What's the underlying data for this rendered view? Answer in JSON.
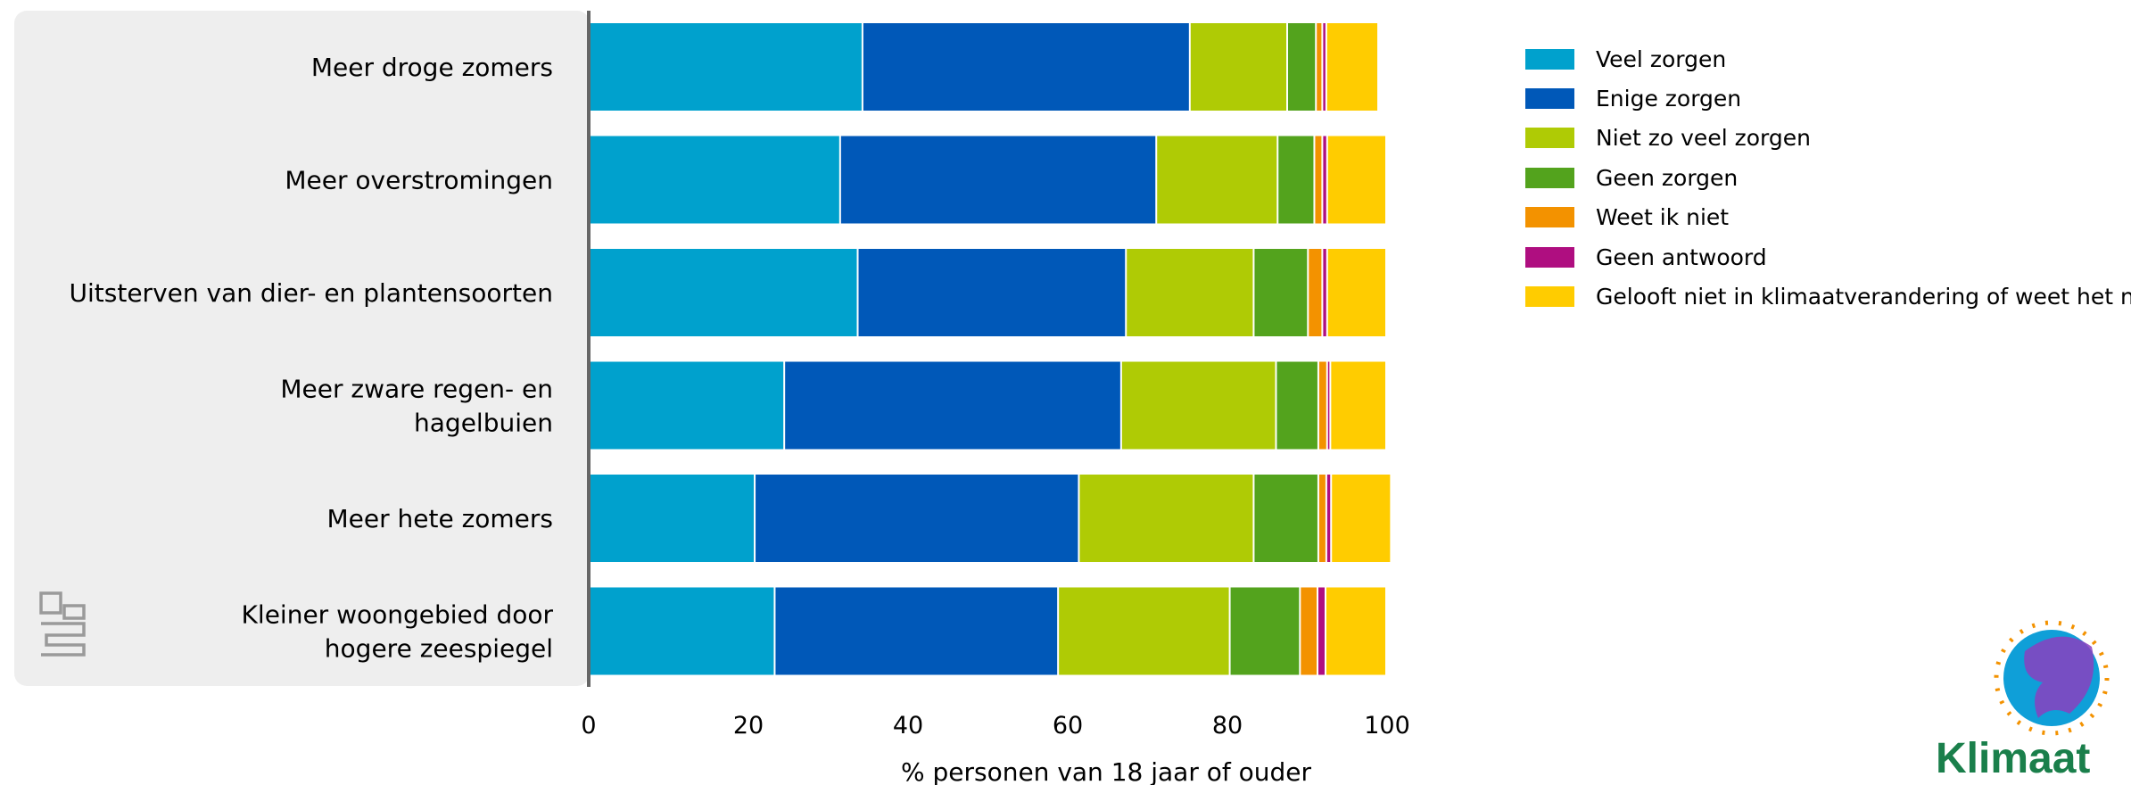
{
  "chart_data": {
    "type": "bar",
    "orientation": "horizontal",
    "stacked": true,
    "categories": [
      "Meer droge zomers",
      "Meer overstromingen",
      "Uitsterven van dier- en plantensoorten",
      "Meer zware regen- en hagelbuien",
      "Meer hete zomers",
      "Kleiner woongebied door hogere zeespiegel"
    ],
    "category_lines": [
      [
        "Meer droge zomers"
      ],
      [
        "Meer overstromingen"
      ],
      [
        "Uitsterven van dier- en plantensoorten"
      ],
      [
        "Meer zware regen- en",
        "hagelbuien"
      ],
      [
        "Meer hete zomers"
      ],
      [
        "Kleiner woongebied door",
        "hogere zeespiegel"
      ]
    ],
    "series": [
      {
        "name": "Veel zorgen",
        "color": "#00a1cd",
        "values": [
          34.4,
          31.6,
          33.8,
          24.6,
          20.9,
          23.4
        ]
      },
      {
        "name": "Enige zorgen",
        "color": "#0058b8",
        "values": [
          41.0,
          39.6,
          33.6,
          42.2,
          40.6,
          35.5
        ]
      },
      {
        "name": "Niet zo veel zorgen",
        "color": "#afcb05",
        "values": [
          12.2,
          15.2,
          16.0,
          19.4,
          21.9,
          21.5
        ]
      },
      {
        "name": "Geen zorgen",
        "color": "#53a31d",
        "values": [
          3.6,
          4.6,
          6.8,
          5.3,
          8.1,
          8.8
        ]
      },
      {
        "name": "Weet ik niet",
        "color": "#f39200",
        "values": [
          0.8,
          1.0,
          1.8,
          1.1,
          1.0,
          2.2
        ]
      },
      {
        "name": "Geen antwoord",
        "color": "#af0e80",
        "values": [
          0.5,
          0.6,
          0.6,
          0.4,
          0.6,
          1.0
        ]
      },
      {
        "name": "Gelooft niet in klimaatverandering of weet het niet",
        "color": "#ffcc00",
        "values": [
          6.5,
          7.4,
          7.4,
          7.0,
          7.5,
          7.6
        ]
      }
    ],
    "xlim": [
      0,
      100
    ],
    "xticks": [
      0,
      20,
      40,
      60,
      80,
      100
    ],
    "xlabel": "% personen van 18 jaar of ouder",
    "title": "",
    "legend_position": "right"
  },
  "logo": {
    "source_logo_icon": "cbs-logo-icon",
    "brand_logo_icon": "klimaat-logo-icon",
    "brand_text": "Klimaat"
  }
}
